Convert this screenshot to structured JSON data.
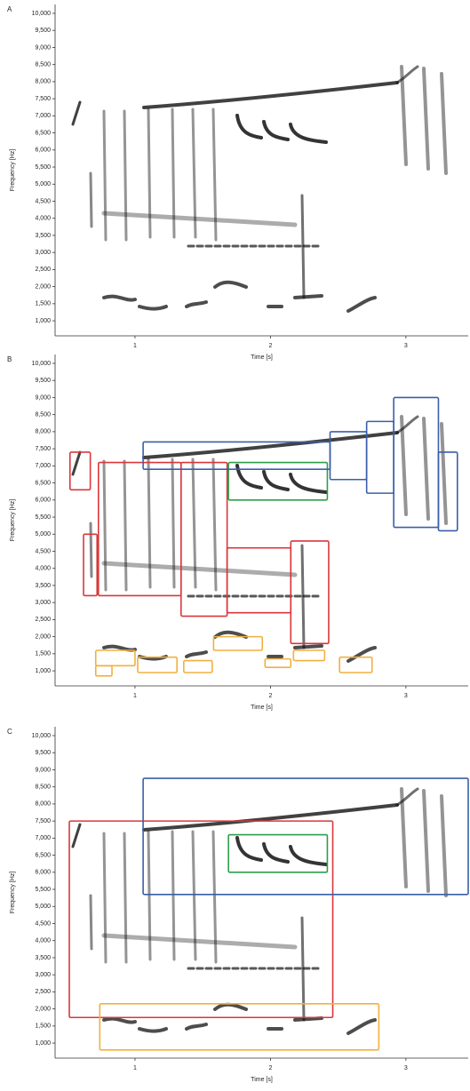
{
  "chart_data": [
    {
      "type": "spectrogram",
      "panel_label": "A",
      "xlabel": "Time [s]",
      "ylabel": "Frequency [Hz]",
      "xlim": [
        0.41,
        3.46
      ],
      "ylim": [
        560,
        10260
      ],
      "xticks": [
        1,
        2,
        3
      ],
      "yticks": [
        {
          "value": 1000,
          "label": "1,000"
        },
        {
          "value": 1500,
          "label": "1,500"
        },
        {
          "value": 2000,
          "label": "2,000"
        },
        {
          "value": 2500,
          "label": "2,500"
        },
        {
          "value": 3000,
          "label": "3,000"
        },
        {
          "value": 3500,
          "label": "3,500"
        },
        {
          "value": 4000,
          "label": "4,000"
        },
        {
          "value": 4500,
          "label": "4,500"
        },
        {
          "value": 5000,
          "label": "5,000"
        },
        {
          "value": 5500,
          "label": "5,500"
        },
        {
          "value": 6000,
          "label": "6,000"
        },
        {
          "value": 6500,
          "label": "6,500"
        },
        {
          "value": 7000,
          "label": "7,000"
        },
        {
          "value": 7500,
          "label": "7,500"
        },
        {
          "value": 8000,
          "label": "8,000"
        },
        {
          "value": 8500,
          "label": "8,500"
        },
        {
          "value": 9000,
          "label": "9,000"
        },
        {
          "value": 9500,
          "label": "9,500"
        },
        {
          "value": 10000,
          "label": "10,000"
        }
      ]
    },
    {
      "type": "spectrogram",
      "panel_label": "B",
      "xlabel": "Time [s]",
      "ylabel": "Frequency [Hz]",
      "xlim": [
        0.41,
        3.46
      ],
      "ylim": [
        560,
        10260
      ],
      "xticks": [
        1,
        2,
        3
      ],
      "yticks": [
        {
          "value": 1000,
          "label": "1,000"
        },
        {
          "value": 1500,
          "label": "1,500"
        },
        {
          "value": 2000,
          "label": "2,000"
        },
        {
          "value": 2500,
          "label": "2,500"
        },
        {
          "value": 3000,
          "label": "3,000"
        },
        {
          "value": 3500,
          "label": "3,500"
        },
        {
          "value": 4000,
          "label": "4,000"
        },
        {
          "value": 4500,
          "label": "4,500"
        },
        {
          "value": 5000,
          "label": "5,000"
        },
        {
          "value": 5500,
          "label": "5,500"
        },
        {
          "value": 6000,
          "label": "6,000"
        },
        {
          "value": 6500,
          "label": "6,500"
        },
        {
          "value": 7000,
          "label": "7,000"
        },
        {
          "value": 7500,
          "label": "7,500"
        },
        {
          "value": 8000,
          "label": "8,000"
        },
        {
          "value": 8500,
          "label": "8,500"
        },
        {
          "value": 9000,
          "label": "9,000"
        },
        {
          "value": 9500,
          "label": "9,500"
        },
        {
          "value": 10000,
          "label": "10,000"
        }
      ],
      "boxes": [
        {
          "color": "#d9373b",
          "x": [
            0.52,
            0.67
          ],
          "y": [
            6300,
            7400
          ]
        },
        {
          "color": "#d9373b",
          "x": [
            0.62,
            0.72
          ],
          "y": [
            3200,
            5000
          ]
        },
        {
          "color": "#d9373b",
          "x": [
            0.73,
            1.34
          ],
          "y": [
            3200,
            7100
          ]
        },
        {
          "color": "#d9373b",
          "x": [
            1.34,
            1.68
          ],
          "y": [
            2600,
            7100
          ]
        },
        {
          "color": "#d9373b",
          "x": [
            1.68,
            2.15
          ],
          "y": [
            2700,
            4600
          ]
        },
        {
          "color": "#d9373b",
          "x": [
            2.15,
            2.43
          ],
          "y": [
            1800,
            4800
          ]
        },
        {
          "color": "#2e9e4a",
          "x": [
            1.69,
            2.42
          ],
          "y": [
            6000,
            7100
          ]
        },
        {
          "color": "#3a5fa8",
          "x": [
            1.06,
            2.44
          ],
          "y": [
            6900,
            7700
          ]
        },
        {
          "color": "#3a5fa8",
          "x": [
            2.44,
            2.71
          ],
          "y": [
            6600,
            8000
          ]
        },
        {
          "color": "#3a5fa8",
          "x": [
            2.71,
            2.91
          ],
          "y": [
            6200,
            8300
          ]
        },
        {
          "color": "#3a5fa8",
          "x": [
            2.91,
            3.24
          ],
          "y": [
            5200,
            9000
          ]
        },
        {
          "color": "#3a5fa8",
          "x": [
            3.24,
            3.38
          ],
          "y": [
            5100,
            7400
          ]
        },
        {
          "color": "#f0b040",
          "x": [
            0.71,
            1.0
          ],
          "y": [
            1150,
            1600
          ]
        },
        {
          "color": "#f0b040",
          "x": [
            0.71,
            0.83
          ],
          "y": [
            850,
            1150
          ]
        },
        {
          "color": "#f0b040",
          "x": [
            1.02,
            1.31
          ],
          "y": [
            950,
            1400
          ]
        },
        {
          "color": "#f0b040",
          "x": [
            1.36,
            1.57
          ],
          "y": [
            950,
            1300
          ]
        },
        {
          "color": "#f0b040",
          "x": [
            1.58,
            1.94
          ],
          "y": [
            1600,
            2000
          ]
        },
        {
          "color": "#f0b040",
          "x": [
            1.96,
            2.15
          ],
          "y": [
            1100,
            1350
          ]
        },
        {
          "color": "#f0b040",
          "x": [
            2.17,
            2.4
          ],
          "y": [
            1300,
            1600
          ]
        },
        {
          "color": "#f0b040",
          "x": [
            2.51,
            2.75
          ],
          "y": [
            950,
            1400
          ]
        }
      ]
    },
    {
      "type": "spectrogram",
      "panel_label": "C",
      "xlabel": "Time [s]",
      "ylabel": "Frequency [Hz]",
      "xlim": [
        0.41,
        3.46
      ],
      "ylim": [
        560,
        10260
      ],
      "xticks": [
        1,
        2,
        3
      ],
      "yticks": [
        {
          "value": 1000,
          "label": "1,000"
        },
        {
          "value": 1500,
          "label": "1,500"
        },
        {
          "value": 2000,
          "label": "2,000"
        },
        {
          "value": 2500,
          "label": "2,500"
        },
        {
          "value": 3000,
          "label": "3,000"
        },
        {
          "value": 3500,
          "label": "3,500"
        },
        {
          "value": 4000,
          "label": "4,000"
        },
        {
          "value": 4500,
          "label": "4,500"
        },
        {
          "value": 5000,
          "label": "5,000"
        },
        {
          "value": 5500,
          "label": "5,500"
        },
        {
          "value": 6000,
          "label": "6,000"
        },
        {
          "value": 6500,
          "label": "6,500"
        },
        {
          "value": 7000,
          "label": "7,000"
        },
        {
          "value": 7500,
          "label": "7,500"
        },
        {
          "value": 8000,
          "label": "8,000"
        },
        {
          "value": 8500,
          "label": "8,500"
        },
        {
          "value": 9000,
          "label": "9,000"
        },
        {
          "value": 9500,
          "label": "9,500"
        },
        {
          "value": 10000,
          "label": "10,000"
        }
      ],
      "boxes": [
        {
          "color": "#d9373b",
          "x": [
            0.515,
            2.46
          ],
          "y": [
            1750,
            7500
          ]
        },
        {
          "color": "#3a5fa8",
          "x": [
            1.06,
            3.46
          ],
          "y": [
            5350,
            8750
          ]
        },
        {
          "color": "#2e9e4a",
          "x": [
            1.69,
            2.42
          ],
          "y": [
            6000,
            7100
          ]
        },
        {
          "color": "#f0b040",
          "x": [
            0.74,
            2.8
          ],
          "y": [
            800,
            2150
          ]
        }
      ]
    }
  ]
}
